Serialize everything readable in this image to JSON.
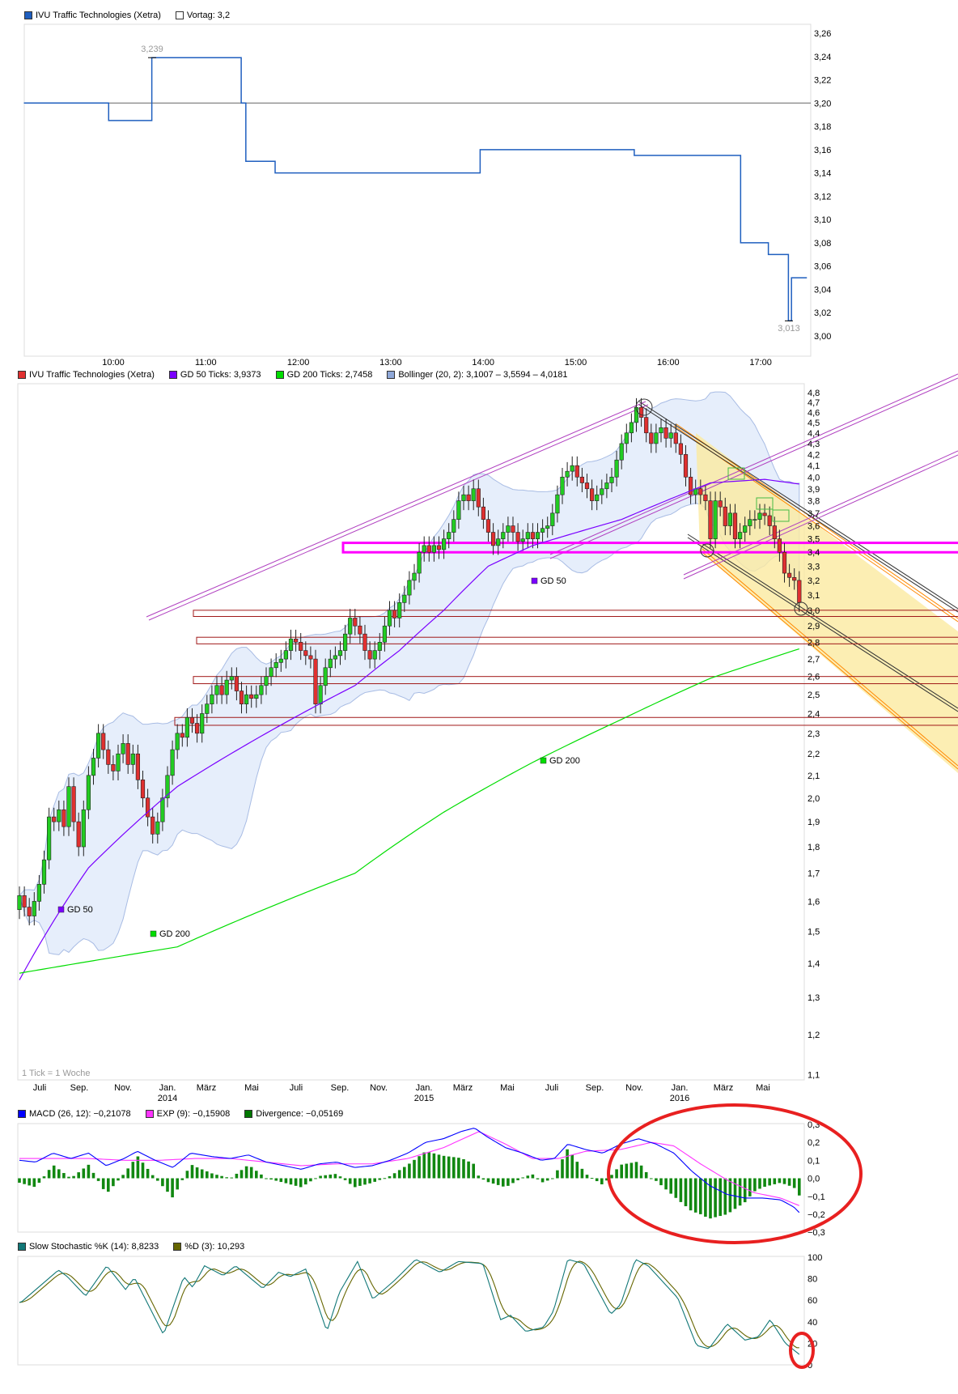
{
  "intraday": {
    "legend": {
      "series": "IVU Traffic Technologies (Xetra)",
      "prev": "Vortag: 3,2"
    },
    "colors": {
      "series": "#1f5fbf",
      "prev": "#ffffff"
    },
    "yticks": [
      "3,26",
      "3,24",
      "3,22",
      "3,20",
      "3,18",
      "3,16",
      "3,14",
      "3,12",
      "3,10",
      "3,08",
      "3,06",
      "3,04",
      "3,02",
      "3,00"
    ],
    "xticks": [
      "10:00",
      "11:00",
      "12:00",
      "13:00",
      "14:00",
      "15:00",
      "16:00",
      "17:00"
    ],
    "high_label": "3,239",
    "low_label": "3,013",
    "prev_close": 3.2,
    "steps": [
      [
        "09:02",
        3.2
      ],
      [
        "09:57",
        3.185
      ],
      [
        "10:25",
        3.239
      ],
      [
        "11:23",
        3.2
      ],
      [
        "11:26",
        3.15
      ],
      [
        "11:45",
        3.14
      ],
      [
        "13:58",
        3.16
      ],
      [
        "15:38",
        3.155
      ],
      [
        "16:47",
        3.08
      ],
      [
        "17:05",
        3.07
      ],
      [
        "17:18",
        3.013
      ],
      [
        "17:20",
        3.05
      ],
      [
        "17:30",
        3.05
      ]
    ]
  },
  "chart_data": [
    {
      "type": "line",
      "title": "",
      "series": [
        {
          "name": "IVU Traffic Technologies (Xetra)"
        }
      ],
      "ylim": [
        3.0,
        3.26
      ],
      "note_ref": "intraday"
    },
    {
      "type": "candlestick",
      "legend": [
        {
          "label": "IVU Traffic Technologies (Xetra)",
          "color": "#e03030"
        },
        {
          "label": "GD 50 Ticks: 3,9373",
          "color": "#7a00ff"
        },
        {
          "label": "GD 200 Ticks: 2,7458",
          "color": "#00dd00"
        },
        {
          "label": "Bollinger (20, 2): 3,1007 – 3,5594 – 4,0181",
          "color": "#8fa8d8"
        }
      ],
      "yscale": "log",
      "ylim": [
        1.1,
        4.8
      ],
      "yticks": [
        "4,8",
        "4,7",
        "4,6",
        "4,5",
        "4,4",
        "4,3",
        "4,2",
        "4,1",
        "4,0",
        "3,9",
        "3,8",
        "3,7",
        "3,6",
        "3,5",
        "3,4",
        "3,3",
        "3,2",
        "3,1",
        "3,0",
        "2,9",
        "2,8",
        "2,7",
        "2,6",
        "2,5",
        "2,4",
        "2,3",
        "2,2",
        "2,1",
        "2,0",
        "1,9",
        "1,8",
        "1,7",
        "1,6",
        "1,5",
        "1,4",
        "1,3",
        "1,2",
        "1,1"
      ],
      "xticks": [
        [
          "Juli",
          ""
        ],
        [
          "Sep.",
          ""
        ],
        [
          "Nov.",
          ""
        ],
        [
          "Jan.",
          "2014"
        ],
        [
          "März",
          ""
        ],
        [
          "Mai",
          ""
        ],
        [
          "Juli",
          ""
        ],
        [
          "Sep.",
          ""
        ],
        [
          "Nov.",
          ""
        ],
        [
          "Jan.",
          "2015"
        ],
        [
          "März",
          ""
        ],
        [
          "Mai",
          ""
        ],
        [
          "Juli",
          ""
        ],
        [
          "Sep.",
          ""
        ],
        [
          "Nov.",
          ""
        ],
        [
          "Jan.",
          "2016"
        ],
        [
          "März",
          ""
        ],
        [
          "Mai",
          ""
        ]
      ],
      "tick_note": "1 Tick = 1 Woche",
      "closes": [
        1.62,
        1.58,
        1.55,
        1.6,
        1.66,
        1.75,
        1.92,
        1.9,
        1.95,
        1.88,
        2.05,
        1.9,
        1.8,
        1.95,
        2.1,
        2.18,
        2.3,
        2.22,
        2.15,
        2.12,
        2.2,
        2.25,
        2.15,
        2.2,
        2.08,
        2.0,
        1.92,
        1.85,
        1.9,
        2.0,
        2.1,
        2.22,
        2.3,
        2.28,
        2.38,
        2.35,
        2.3,
        2.4,
        2.45,
        2.5,
        2.55,
        2.5,
        2.58,
        2.6,
        2.52,
        2.45,
        2.5,
        2.48,
        2.5,
        2.55,
        2.6,
        2.65,
        2.68,
        2.7,
        2.75,
        2.82,
        2.8,
        2.75,
        2.72,
        2.7,
        2.45,
        2.55,
        2.65,
        2.7,
        2.72,
        2.75,
        2.85,
        2.95,
        2.9,
        2.85,
        2.75,
        2.7,
        2.75,
        2.8,
        2.9,
        3.0,
        2.95,
        3.05,
        3.1,
        3.2,
        3.25,
        3.4,
        3.45,
        3.4,
        3.45,
        3.42,
        3.5,
        3.55,
        3.65,
        3.8,
        3.85,
        3.8,
        3.9,
        3.75,
        3.65,
        3.55,
        3.45,
        3.5,
        3.55,
        3.6,
        3.55,
        3.48,
        3.5,
        3.55,
        3.5,
        3.55,
        3.58,
        3.6,
        3.7,
        3.85,
        4.0,
        4.05,
        4.1,
        4.0,
        3.95,
        3.9,
        3.8,
        3.85,
        3.9,
        3.95,
        4.0,
        4.15,
        4.3,
        4.4,
        4.5,
        4.65,
        4.55,
        4.4,
        4.3,
        4.4,
        4.45,
        4.35,
        4.4,
        4.3,
        4.2,
        4.0,
        3.85,
        3.9,
        3.85,
        3.8,
        3.5,
        3.8,
        3.75,
        3.6,
        3.7,
        3.5,
        3.55,
        3.6,
        3.65,
        3.65,
        3.7,
        3.68,
        3.6,
        3.5,
        3.4,
        3.25,
        3.22,
        3.2,
        3.05
      ],
      "gd50": [
        [
          0,
          1.35
        ],
        [
          14,
          1.72
        ],
        [
          32,
          2.05
        ],
        [
          50,
          2.3
        ],
        [
          68,
          2.55
        ],
        [
          77,
          2.75
        ],
        [
          86,
          3.0
        ],
        [
          95,
          3.3
        ],
        [
          104,
          3.45
        ],
        [
          113,
          3.55
        ],
        [
          122,
          3.65
        ],
        [
          131,
          3.8
        ],
        [
          140,
          3.95
        ],
        [
          151,
          3.98
        ],
        [
          158,
          3.94
        ]
      ],
      "gd200": [
        [
          0,
          1.37
        ],
        [
          32,
          1.45
        ],
        [
          68,
          1.7
        ],
        [
          86,
          1.94
        ],
        [
          104,
          2.16
        ],
        [
          122,
          2.37
        ],
        [
          140,
          2.59
        ],
        [
          158,
          2.76
        ]
      ],
      "labels": {
        "gd50": "GD 50",
        "gd200": "GD 200"
      },
      "support_zones": [
        [
          2.96,
          3.0
        ],
        [
          2.79,
          2.83
        ],
        [
          2.56,
          2.6
        ],
        [
          2.34,
          2.38
        ]
      ],
      "resistance_zone": [
        3.4,
        3.47
      ],
      "colors": {
        "up": "#22cc22",
        "down": "#e03030",
        "zone": "#a01818",
        "magenta": "#ff00ff",
        "band": "#e6eefb"
      }
    },
    {
      "type": "line",
      "legend": [
        {
          "label": "MACD (26, 12): −0,21078",
          "color": "#0000ff"
        },
        {
          "label": "EXP (9): −0,15908",
          "color": "#ff33ff"
        },
        {
          "label": "Divergence: −0,05169",
          "color": "#007700"
        }
      ],
      "ylim": [
        -0.3,
        0.3
      ],
      "yticks": [
        "0,3",
        "0,2",
        "0,1",
        "0,0",
        "−0,1",
        "−0,2",
        "−0,3"
      ],
      "macd": [
        [
          0,
          0.1
        ],
        [
          3.3,
          0.09
        ],
        [
          6.8,
          0.14
        ],
        [
          10.4,
          0.11
        ],
        [
          14,
          0.14
        ],
        [
          17.6,
          0.07
        ],
        [
          21.2,
          0.11
        ],
        [
          23.9,
          0.15
        ],
        [
          27.5,
          0.1
        ],
        [
          31.1,
          0.06
        ],
        [
          34.7,
          0.14
        ],
        [
          39.2,
          0.12
        ],
        [
          42.8,
          0.11
        ],
        [
          46.4,
          0.13
        ],
        [
          50,
          0.09
        ],
        [
          53.6,
          0.07
        ],
        [
          57.1,
          0.05
        ],
        [
          60.7,
          0.08
        ],
        [
          64.3,
          0.09
        ],
        [
          67.9,
          0.06
        ],
        [
          71.5,
          0.07
        ],
        [
          75.1,
          0.1
        ],
        [
          78.7,
          0.14
        ],
        [
          82.3,
          0.2
        ],
        [
          85.9,
          0.22
        ],
        [
          89.5,
          0.26
        ],
        [
          92.2,
          0.28
        ],
        [
          94.8,
          0.23
        ],
        [
          98.5,
          0.17
        ],
        [
          102,
          0.14
        ],
        [
          105.7,
          0.1
        ],
        [
          108.4,
          0.11
        ],
        [
          111.1,
          0.19
        ],
        [
          114.7,
          0.16
        ],
        [
          118.2,
          0.14
        ],
        [
          121.8,
          0.19
        ],
        [
          125.4,
          0.22
        ],
        [
          129,
          0.19
        ],
        [
          132.6,
          0.14
        ],
        [
          136.2,
          0.04
        ],
        [
          139.8,
          -0.04
        ],
        [
          143.4,
          -0.09
        ],
        [
          147,
          -0.11
        ],
        [
          150.6,
          -0.11
        ],
        [
          154.2,
          -0.12
        ],
        [
          156.9,
          -0.16
        ],
        [
          158.7,
          -0.21
        ]
      ],
      "signal": [
        [
          0,
          0.11
        ],
        [
          6.8,
          0.11
        ],
        [
          14,
          0.11
        ],
        [
          21.2,
          0.1
        ],
        [
          28.4,
          0.1
        ],
        [
          35.6,
          0.11
        ],
        [
          42.8,
          0.11
        ],
        [
          50,
          0.09
        ],
        [
          57.1,
          0.07
        ],
        [
          64.3,
          0.08
        ],
        [
          71.5,
          0.08
        ],
        [
          78.7,
          0.11
        ],
        [
          85.9,
          0.17
        ],
        [
          93.1,
          0.26
        ],
        [
          98.5,
          0.19
        ],
        [
          103.9,
          0.11
        ],
        [
          109.3,
          0.11
        ],
        [
          114.7,
          0.15
        ],
        [
          121.8,
          0.16
        ],
        [
          128.1,
          0.2
        ],
        [
          132.6,
          0.18
        ],
        [
          138,
          0.08
        ],
        [
          143.4,
          -0.01
        ],
        [
          148.8,
          -0.08
        ],
        [
          154.2,
          -0.11
        ],
        [
          158.7,
          -0.16
        ]
      ]
    },
    {
      "type": "line",
      "legend": [
        {
          "label": "Slow Stochastic %K (14): 8,8233",
          "color": "#117777"
        },
        {
          "label": "%D (3): 10,293",
          "color": "#666600"
        }
      ],
      "ylim": [
        0,
        100
      ],
      "yticks": [
        "100",
        "80",
        "60",
        "40",
        "20",
        "0"
      ],
      "k": [
        [
          0.3,
          58
        ],
        [
          7.9,
          88
        ],
        [
          9.7,
          82
        ],
        [
          13.4,
          64
        ],
        [
          17.7,
          92
        ],
        [
          21.5,
          70
        ],
        [
          23.3,
          81
        ],
        [
          29.2,
          28
        ],
        [
          33.3,
          82
        ],
        [
          35.1,
          72
        ],
        [
          37.5,
          92
        ],
        [
          41.3,
          83
        ],
        [
          43.8,
          92
        ],
        [
          49.3,
          71
        ],
        [
          52.5,
          86
        ],
        [
          54.9,
          82
        ],
        [
          58,
          89
        ],
        [
          62.3,
          31
        ],
        [
          64.8,
          67
        ],
        [
          68.5,
          96
        ],
        [
          71.6,
          61
        ],
        [
          75.9,
          78
        ],
        [
          80.3,
          98
        ],
        [
          85.2,
          86
        ],
        [
          88.9,
          96
        ],
        [
          93.9,
          94
        ],
        [
          97.5,
          42
        ],
        [
          99.5,
          46
        ],
        [
          102.6,
          31
        ],
        [
          106.2,
          35
        ],
        [
          108.2,
          50
        ],
        [
          111.1,
          98
        ],
        [
          114.3,
          94
        ],
        [
          119.8,
          47
        ],
        [
          121.8,
          56
        ],
        [
          124.8,
          98
        ],
        [
          127.4,
          92
        ],
        [
          133.4,
          62
        ],
        [
          137.2,
          18
        ],
        [
          139.7,
          15
        ],
        [
          143.4,
          38
        ],
        [
          147,
          23
        ],
        [
          149.7,
          26
        ],
        [
          152.1,
          42
        ],
        [
          155.2,
          20
        ],
        [
          158.2,
          9
        ]
      ]
    }
  ]
}
